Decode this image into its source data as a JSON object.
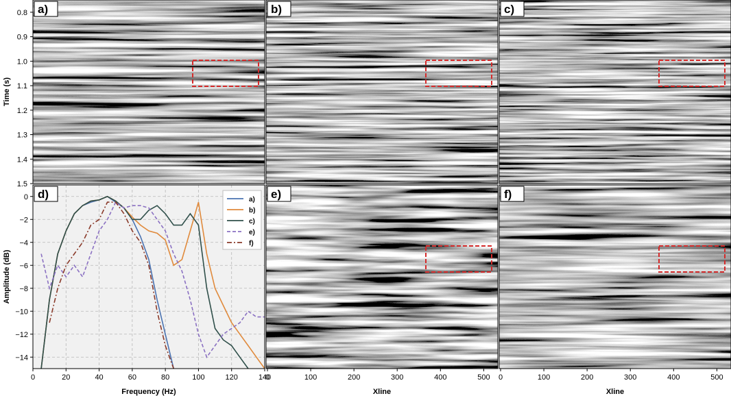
{
  "chart_data": [
    {
      "type": "heatmap",
      "panel": "a)",
      "ylabel": "Time (s)",
      "yticks": [
        "0.8",
        "0.9",
        "1.0",
        "1.1",
        "1.2",
        "1.3",
        "1.4",
        "1.5"
      ],
      "ylim": [
        0.75,
        1.5
      ],
      "xlim": [
        0,
        520
      ],
      "colormap": "gray seismic amplitude",
      "highlight_box": {
        "x": [
          370,
          520
        ],
        "t": [
          0.96,
          1.08
        ],
        "color": "#d42a2a"
      }
    },
    {
      "type": "heatmap",
      "panel": "b)",
      "ylim": [
        0.75,
        1.5
      ],
      "xlim": [
        0,
        520
      ],
      "colormap": "gray seismic amplitude",
      "highlight_box": {
        "x": [
          370,
          520
        ],
        "t": [
          0.96,
          1.08
        ],
        "color": "#d42a2a"
      }
    },
    {
      "type": "heatmap",
      "panel": "c)",
      "ylim": [
        0.75,
        1.5
      ],
      "xlim": [
        0,
        520
      ],
      "colormap": "gray seismic amplitude",
      "highlight_box": {
        "x": [
          370,
          520
        ],
        "t": [
          0.96,
          1.08
        ],
        "color": "#d42a2a"
      }
    },
    {
      "type": "line",
      "panel": "d)",
      "xlabel": "Frequency (Hz)",
      "ylabel": "Amplitude (dB)",
      "xlim": [
        0,
        140
      ],
      "ylim": [
        -15,
        1
      ],
      "xticks": [
        "0",
        "20",
        "40",
        "60",
        "80",
        "100",
        "120",
        "140"
      ],
      "yticks": [
        "0",
        "−2",
        "−4",
        "−6",
        "−8",
        "−10",
        "−12",
        "−14"
      ],
      "grid": true,
      "legend_position": "top-right",
      "series": [
        {
          "name": "a)",
          "color": "#4a72b0",
          "style": "solid",
          "x": [
            5,
            10,
            15,
            20,
            25,
            30,
            35,
            40,
            45,
            50,
            55,
            60,
            65,
            70,
            75,
            80,
            85
          ],
          "y": [
            -15,
            -9,
            -5,
            -3,
            -1.5,
            -0.8,
            -0.5,
            -0.3,
            0,
            -0.5,
            -1,
            -2,
            -3.5,
            -5.5,
            -9,
            -12,
            -15
          ]
        },
        {
          "name": "b)",
          "color": "#e08a3c",
          "style": "solid",
          "x": [
            5,
            10,
            15,
            20,
            25,
            30,
            35,
            40,
            45,
            50,
            55,
            60,
            65,
            70,
            75,
            80,
            85,
            90,
            95,
            100,
            105,
            110,
            115,
            120,
            125,
            130,
            135,
            140
          ],
          "y": [
            -15,
            -9,
            -5,
            -3,
            -1.5,
            -0.8,
            -0.4,
            -0.3,
            0,
            -0.4,
            -1,
            -1.8,
            -2.5,
            -3,
            -3.2,
            -3.8,
            -6,
            -5.5,
            -3,
            -0.5,
            -5,
            -8,
            -9.5,
            -11,
            -12,
            -13,
            -14,
            -15
          ]
        },
        {
          "name": "c)",
          "color": "#2f4f4a",
          "style": "solid",
          "x": [
            5,
            10,
            15,
            20,
            25,
            30,
            35,
            40,
            45,
            50,
            55,
            60,
            65,
            70,
            75,
            80,
            85,
            90,
            95,
            100,
            105,
            110,
            115,
            120,
            125,
            130
          ],
          "y": [
            -15,
            -9,
            -5,
            -3,
            -1.5,
            -0.8,
            -0.4,
            -0.3,
            0,
            -0.4,
            -1,
            -2,
            -2,
            -1.2,
            -0.8,
            -1.5,
            -2.5,
            -2.5,
            -1.5,
            -2.5,
            -8,
            -11.5,
            -12.5,
            -13,
            -14,
            -15
          ]
        },
        {
          "name": "e)",
          "color": "#8a70c2",
          "style": "dashed",
          "x": [
            5,
            10,
            15,
            20,
            25,
            30,
            35,
            40,
            45,
            50,
            55,
            60,
            65,
            70,
            75,
            80,
            85,
            90,
            95,
            100,
            105,
            110,
            115,
            120,
            125,
            130,
            135,
            140
          ],
          "y": [
            -5,
            -8,
            -6,
            -7,
            -6,
            -7,
            -5,
            -3,
            -2,
            -0.5,
            -1,
            -0.8,
            -0.8,
            -1,
            -2,
            -3,
            -5,
            -6.5,
            -9,
            -12,
            -14,
            -13,
            -12,
            -11.5,
            -11,
            -10,
            -10.5,
            -10.5
          ]
        },
        {
          "name": "f)",
          "color": "#8a3a2a",
          "style": "dashdot",
          "x": [
            10,
            15,
            20,
            25,
            30,
            35,
            40,
            45,
            50,
            55,
            60,
            65,
            70,
            75,
            80,
            85
          ],
          "y": [
            -11,
            -8,
            -6,
            -5,
            -4,
            -2.5,
            -2,
            -0.5,
            -0.5,
            -1.5,
            -3,
            -4,
            -6,
            -10,
            -13,
            -15
          ]
        }
      ]
    },
    {
      "type": "heatmap",
      "panel": "e)",
      "xlabel": "Xline",
      "xticks": [
        "0",
        "100",
        "200",
        "300",
        "400",
        "500"
      ],
      "xlim": [
        0,
        520
      ],
      "colormap": "gray seismic amplitude",
      "highlight_box": {
        "x": [
          370,
          520
        ],
        "t": [
          0.96,
          1.08
        ],
        "color": "#d42a2a"
      }
    },
    {
      "type": "heatmap",
      "panel": "f)",
      "xlabel": "Xline",
      "xticks": [
        "0",
        "100",
        "200",
        "300",
        "400",
        "500"
      ],
      "xlim": [
        0,
        520
      ],
      "colormap": "gray seismic amplitude",
      "highlight_box": {
        "x": [
          370,
          520
        ],
        "t": [
          0.96,
          1.08
        ],
        "color": "#d42a2a"
      }
    }
  ]
}
